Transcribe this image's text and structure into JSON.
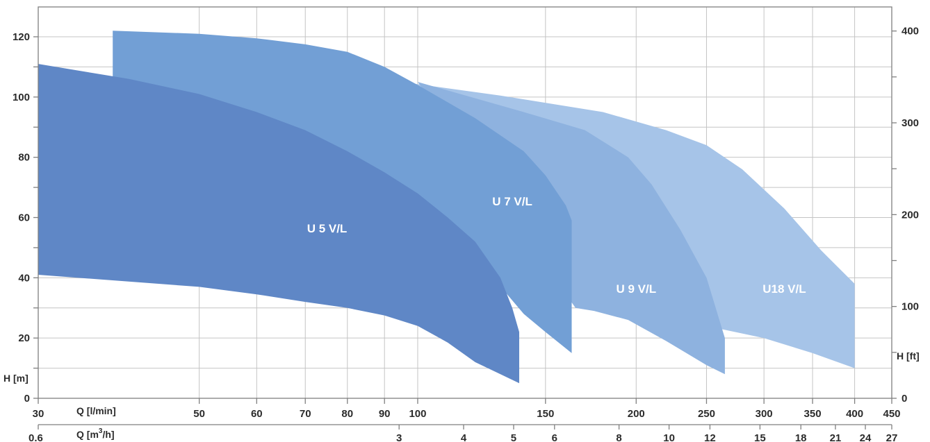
{
  "chart_data": {
    "type": "area",
    "left_axis_label": "H [m]",
    "right_axis_label": "H [ft]",
    "x_axis_label_lmin": "Q [l/min]",
    "x_axis_label_m3h": "Q [m",
    "x_axis_label_m3h_sup": "3",
    "x_axis_label_m3h_end": "/h]",
    "xscale": "log",
    "xlim_lmin": [
      30,
      450
    ],
    "ylim_m": [
      0,
      120
    ],
    "ylim_ft": [
      0,
      400
    ],
    "grid": true,
    "x_ticks_lmin": [
      {
        "value": 30,
        "label": "30"
      },
      {
        "value": 50,
        "label": "50"
      },
      {
        "value": 60,
        "label": "60"
      },
      {
        "value": 70,
        "label": "70"
      },
      {
        "value": 80,
        "label": "80"
      },
      {
        "value": 90,
        "label": "90"
      },
      {
        "value": 100,
        "label": "100"
      },
      {
        "value": 150,
        "label": "150"
      },
      {
        "value": 200,
        "label": "200"
      },
      {
        "value": 250,
        "label": "250"
      },
      {
        "value": 300,
        "label": "300"
      },
      {
        "value": 350,
        "label": "350"
      },
      {
        "value": 400,
        "label": "400"
      },
      {
        "value": 450,
        "label": "450"
      }
    ],
    "x_ticks_m3h": [
      {
        "value": 0.6,
        "label": "0.6"
      },
      {
        "value": 3,
        "label": "3"
      },
      {
        "value": 4,
        "label": "4"
      },
      {
        "value": 5,
        "label": "5"
      },
      {
        "value": 6,
        "label": "6"
      },
      {
        "value": 8,
        "label": "8"
      },
      {
        "value": 10,
        "label": "10"
      },
      {
        "value": 12,
        "label": "12"
      },
      {
        "value": 15,
        "label": "15"
      },
      {
        "value": 18,
        "label": "18"
      },
      {
        "value": 21,
        "label": "21"
      },
      {
        "value": 24,
        "label": "24"
      },
      {
        "value": 27,
        "label": "27"
      }
    ],
    "y_ticks_m": [
      0,
      20,
      40,
      60,
      80,
      100,
      120
    ],
    "y_ticks_ft": [
      0,
      100,
      200,
      300,
      400
    ],
    "series": [
      {
        "name": "U18 V/L",
        "color": "#a6c4e8",
        "label_at": [
          320,
          35
        ],
        "upper": [
          [
            95,
            105
          ],
          [
            130,
            100.5
          ],
          [
            180,
            95
          ],
          [
            220,
            89
          ],
          [
            250,
            84
          ],
          [
            280,
            76
          ],
          [
            320,
            63
          ],
          [
            360,
            49
          ],
          [
            400,
            38
          ]
        ],
        "lower": [
          [
            190,
            30
          ],
          [
            220,
            26
          ],
          [
            250,
            24
          ],
          [
            300,
            20
          ],
          [
            350,
            15
          ],
          [
            400,
            10
          ]
        ]
      },
      {
        "name": "U 9 V/L",
        "color": "#8eb2df",
        "label_at": [
          200,
          35
        ],
        "upper": [
          [
            100,
            105
          ],
          [
            140,
            95
          ],
          [
            170,
            89
          ],
          [
            195,
            80
          ],
          [
            210,
            71
          ],
          [
            230,
            56
          ],
          [
            250,
            40
          ],
          [
            265,
            20
          ]
        ],
        "lower": [
          [
            165,
            30
          ],
          [
            175,
            29
          ],
          [
            195,
            26
          ],
          [
            220,
            19
          ],
          [
            250,
            11
          ],
          [
            265,
            8
          ]
        ]
      },
      {
        "name": "U 7 V/L",
        "color": "#729fd5",
        "label_at": [
          135,
          64
        ],
        "upper": [
          [
            38,
            122
          ],
          [
            50,
            121
          ],
          [
            60,
            119.5
          ],
          [
            70,
            117.5
          ],
          [
            80,
            115
          ],
          [
            90,
            110
          ],
          [
            100,
            104
          ],
          [
            120,
            93
          ],
          [
            140,
            82
          ],
          [
            150,
            74
          ],
          [
            160,
            64
          ],
          [
            163,
            59
          ]
        ],
        "lower": [
          [
            38,
            105
          ],
          [
            60,
            91
          ],
          [
            80,
            77
          ],
          [
            100,
            62
          ],
          [
            120,
            47
          ],
          [
            140,
            28
          ],
          [
            150,
            22
          ],
          [
            163,
            15
          ]
        ]
      },
      {
        "name": "U 5 V/L",
        "color": "#5f87c6",
        "label_at": [
          75,
          55
        ],
        "upper": [
          [
            30,
            111
          ],
          [
            40,
            106
          ],
          [
            50,
            101
          ],
          [
            60,
            95
          ],
          [
            70,
            89
          ],
          [
            80,
            82
          ],
          [
            90,
            75
          ],
          [
            100,
            68
          ],
          [
            110,
            60
          ],
          [
            120,
            52
          ],
          [
            130,
            40
          ],
          [
            135,
            30
          ],
          [
            138,
            22
          ]
        ],
        "lower": [
          [
            30,
            41
          ],
          [
            50,
            37
          ],
          [
            60,
            34.5
          ],
          [
            70,
            32
          ],
          [
            80,
            30
          ],
          [
            90,
            27.5
          ],
          [
            100,
            24
          ],
          [
            110,
            18.5
          ],
          [
            120,
            12
          ],
          [
            130,
            8
          ],
          [
            138,
            5
          ]
        ]
      }
    ]
  }
}
